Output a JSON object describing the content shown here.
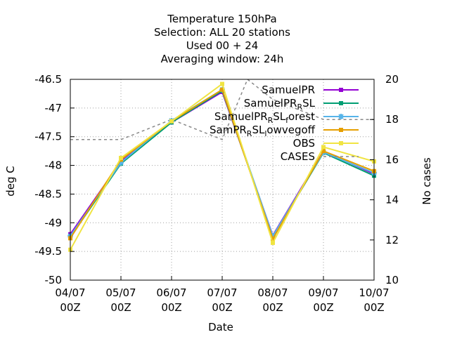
{
  "chart_data": {
    "type": "line",
    "title_lines": [
      "Temperature 150hPa",
      "Selection: ALL     20 stations",
      "Used  00 + 24",
      "Averaging window: 24h"
    ],
    "xlabel": "Date",
    "ylabel": "deg C",
    "y2label": "No cases",
    "categories": [
      [
        "04/07",
        "00Z"
      ],
      [
        "05/07",
        "00Z"
      ],
      [
        "06/07",
        "00Z"
      ],
      [
        "07/07",
        "00Z"
      ],
      [
        "08/07",
        "00Z"
      ],
      [
        "09/07",
        "00Z"
      ],
      [
        "10/07",
        "00Z"
      ]
    ],
    "ylim": [
      -50,
      -46.5
    ],
    "yticks": [
      "-46.5",
      "-47",
      "-47.5",
      "-48",
      "-48.5",
      "-49",
      "-49.5",
      "-50"
    ],
    "y2lim": [
      10,
      20
    ],
    "y2ticks": [
      "20",
      "18",
      "16",
      "14",
      "12",
      "10"
    ],
    "grid": true,
    "legend_position": "top-right",
    "series": [
      {
        "name": "SamuelPR",
        "axis": "y",
        "color": "#9400d3",
        "marker": "square",
        "values": [
          -49.2,
          -47.93,
          -47.25,
          -46.72,
          -49.22,
          -47.75,
          -48.15
        ]
      },
      {
        "name": "SamuelPR_RSL",
        "axis": "y",
        "color": "#009e73",
        "marker": "square",
        "values": [
          -49.25,
          -47.97,
          -47.25,
          -46.7,
          -49.25,
          -47.78,
          -48.18
        ]
      },
      {
        "name": "SamuelPR_RSL_forest",
        "axis": "y",
        "color": "#56b4e9",
        "marker": "star",
        "values": [
          -49.23,
          -47.95,
          -47.22,
          -46.68,
          -49.23,
          -47.77,
          -48.13
        ]
      },
      {
        "name": "SamPR_RSL_lowvegoff",
        "axis": "y",
        "color": "#e69f00",
        "marker": "square",
        "values": [
          -49.27,
          -47.9,
          -47.23,
          -46.68,
          -49.28,
          -47.75,
          -48.1
        ]
      },
      {
        "name": "OBS",
        "axis": "y",
        "color": "#f0e442",
        "marker": "square",
        "values": [
          -49.47,
          -47.87,
          -47.23,
          -46.58,
          -49.35,
          -47.68,
          -47.93
        ]
      },
      {
        "name": "CASES",
        "axis": "y2",
        "color": "#888888",
        "dashed": true,
        "x": [
          0,
          1,
          2,
          3,
          3.5,
          4,
          5,
          6
        ],
        "values": [
          17,
          17,
          18,
          17,
          20,
          19,
          18,
          18
        ]
      }
    ]
  },
  "legend": [
    {
      "parts": [
        [
          "SamuelPR",
          ""
        ]
      ],
      "color": "#9400d3",
      "marker": "square",
      "dashed": false
    },
    {
      "parts": [
        [
          "SamuelPR",
          ""
        ],
        [
          "R",
          "sub"
        ],
        [
          "SL",
          ""
        ]
      ],
      "color": "#009e73",
      "marker": "square",
      "dashed": false
    },
    {
      "parts": [
        [
          "SamuelPR",
          ""
        ],
        [
          "R",
          "sub"
        ],
        [
          "SL",
          ""
        ],
        [
          "f",
          "sub"
        ],
        [
          "orest",
          ""
        ]
      ],
      "color": "#56b4e9",
      "marker": "star",
      "dashed": false
    },
    {
      "parts": [
        [
          "SamPR",
          ""
        ],
        [
          "R",
          "sub"
        ],
        [
          "SL",
          ""
        ],
        [
          "l",
          "sub"
        ],
        [
          "owvegoff",
          ""
        ]
      ],
      "color": "#e69f00",
      "marker": "square",
      "dashed": false
    },
    {
      "parts": [
        [
          "OBS",
          ""
        ]
      ],
      "color": "#f0e442",
      "marker": "square",
      "dashed": false
    },
    {
      "parts": [
        [
          "CASES",
          ""
        ]
      ],
      "color": "#888888",
      "marker": "none",
      "dashed": true
    }
  ]
}
